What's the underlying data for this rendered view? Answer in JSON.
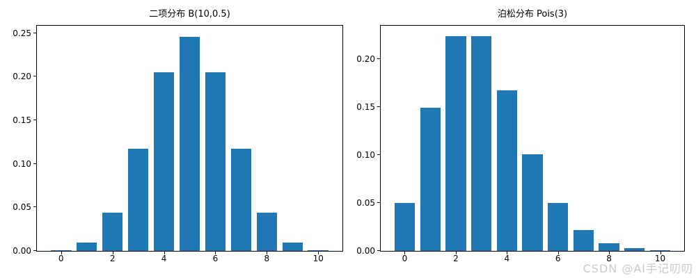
{
  "figure": {
    "background": "#ffffff",
    "watermark": {
      "text": "CSDN @AI手记叨叨",
      "color": "#c9c9c9"
    }
  },
  "style": {
    "bar_color": "#1f77b4",
    "axis_color": "#000000",
    "text_color": "#000000"
  },
  "chart_data": [
    {
      "type": "bar",
      "title": "二项分布 B(10,0.5)",
      "xlabel": "",
      "ylabel": "",
      "categories": [
        0,
        1,
        2,
        3,
        4,
        5,
        6,
        7,
        8,
        9,
        10
      ],
      "values": [
        0.000977,
        0.009766,
        0.043945,
        0.117188,
        0.205078,
        0.246094,
        0.205078,
        0.117188,
        0.043945,
        0.009766,
        0.000977
      ],
      "bar_width": 0.8,
      "bar_color": "#1f77b4",
      "xlim": [
        -0.94,
        10.94
      ],
      "ylim": [
        0,
        0.2585
      ],
      "xticks": [
        0,
        2,
        4,
        6,
        8,
        10
      ],
      "xtick_labels": [
        "0",
        "2",
        "4",
        "6",
        "8",
        "10"
      ],
      "yticks": [
        0,
        0.05,
        0.1,
        0.15,
        0.2,
        0.25
      ],
      "ytick_labels": [
        "0.00",
        "0.05",
        "0.10",
        "0.15",
        "0.20",
        "0.25"
      ],
      "grid": false,
      "legend": null
    },
    {
      "type": "bar",
      "title": "泊松分布 Pois(3)",
      "xlabel": "",
      "ylabel": "",
      "categories": [
        0,
        1,
        2,
        3,
        4,
        5,
        6,
        7,
        8,
        9,
        10
      ],
      "values": [
        0.049787,
        0.149361,
        0.224042,
        0.224042,
        0.168031,
        0.100819,
        0.050409,
        0.021604,
        0.008102,
        0.002701,
        0.00081
      ],
      "bar_width": 0.8,
      "bar_color": "#1f77b4",
      "xlim": [
        -0.94,
        10.94
      ],
      "ylim": [
        0,
        0.2352
      ],
      "xticks": [
        0,
        2,
        4,
        6,
        8,
        10
      ],
      "xtick_labels": [
        "0",
        "2",
        "4",
        "6",
        "8",
        "10"
      ],
      "yticks": [
        0,
        0.05,
        0.1,
        0.15,
        0.2
      ],
      "ytick_labels": [
        "0.00",
        "0.05",
        "0.10",
        "0.15",
        "0.20"
      ],
      "grid": false,
      "legend": null
    }
  ]
}
